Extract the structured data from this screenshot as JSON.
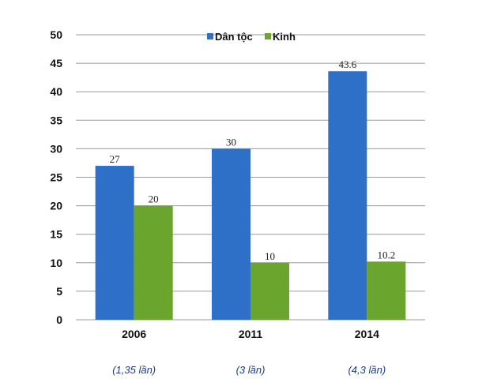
{
  "chart_data": {
    "type": "bar",
    "title": "",
    "xlabel": "",
    "ylabel": "",
    "categories": [
      "2006",
      "2011",
      "2014"
    ],
    "series": [
      {
        "name": "Dân tộc",
        "color": "#2e6fc8",
        "values": [
          27,
          30,
          43.6
        ],
        "labels": [
          "27",
          "30",
          "43.6"
        ]
      },
      {
        "name": "Kinh",
        "color": "#6aa52d",
        "values": [
          20,
          10,
          10.2
        ],
        "labels": [
          "20",
          "10",
          "10.2"
        ]
      }
    ],
    "ylim": [
      0,
      50
    ],
    "yticks": [
      "0",
      "5",
      "10",
      "15",
      "20",
      "25",
      "30",
      "35",
      "40",
      "45",
      "50"
    ],
    "grid": true,
    "legend_position": "top-center",
    "annotations": [
      "(1,35 lần)",
      "(3 lần)",
      "(4,3 lần)"
    ],
    "annotation_color": "#1f3c88"
  }
}
